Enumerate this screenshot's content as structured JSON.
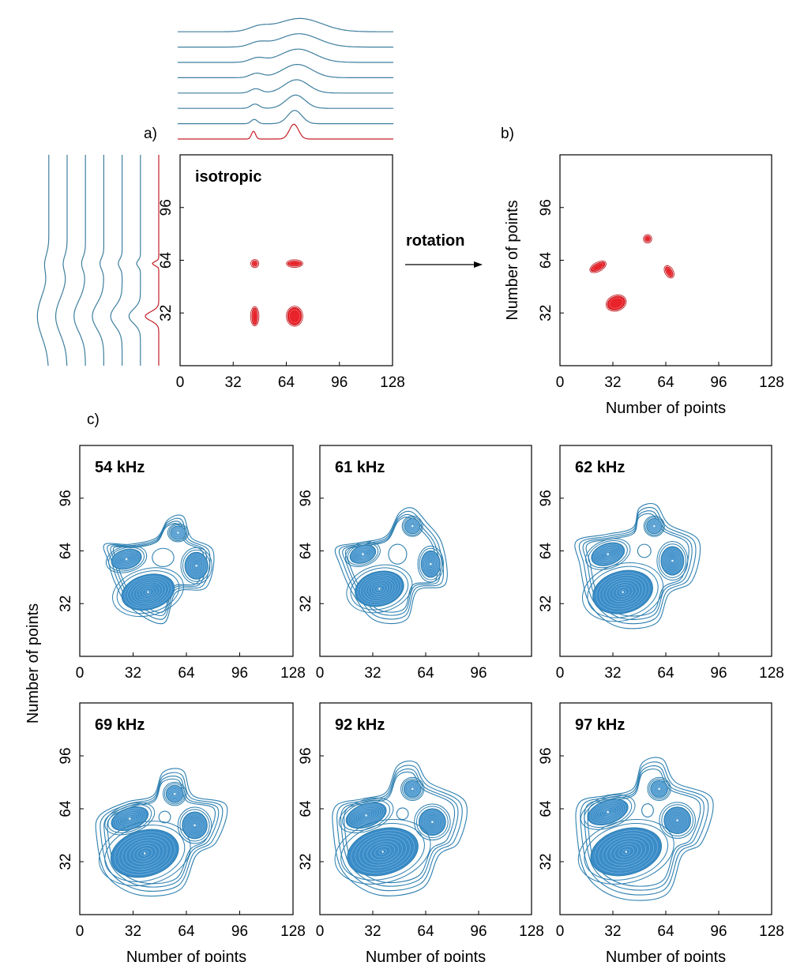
{
  "colors": {
    "red": "#e8232a",
    "blue": "#3a8cc8",
    "line_blue": "#3f7f9e",
    "frame": "#000000",
    "contour_edge": "#2d7fb0"
  },
  "panel_labels": {
    "a": "a)",
    "b": "b)",
    "c": "c)"
  },
  "arrow_label": "rotation",
  "chart_data": [
    {
      "id": "a",
      "type": "contour",
      "annotation": "isotropic",
      "xlabel": "",
      "ylabel": "",
      "xlim": [
        0,
        128
      ],
      "ylim": [
        0,
        128
      ],
      "xticks": [
        "0",
        "32",
        "64",
        "96",
        "128"
      ],
      "yticks": [
        "32",
        "64",
        "96"
      ],
      "color": "#e8232a",
      "peaks": [
        {
          "x": 45,
          "y": 62,
          "sx": 1.5,
          "sy": 1.5,
          "rot": 0
        },
        {
          "x": 69,
          "y": 62,
          "sx": 3.8,
          "sy": 1.4,
          "rot": 0
        },
        {
          "x": 45,
          "y": 30,
          "sx": 1.6,
          "sy": 4.6,
          "rot": 0
        },
        {
          "x": 69,
          "y": 30,
          "sx": 3.8,
          "sy": 4.8,
          "rot": 0
        }
      ],
      "projection_top": {
        "peaks_x": [
          45,
          69
        ],
        "widths": [
          1.2,
          3.0
        ],
        "heights": [
          0.45,
          0.85
        ]
      },
      "projection_left": {
        "peaks_y": [
          62,
          30
        ],
        "widths": [
          1.2,
          3.0
        ],
        "heights": [
          0.4,
          0.85
        ]
      }
    },
    {
      "id": "b",
      "type": "contour",
      "annotation": "",
      "xlabel": "Number of points",
      "ylabel": "Number of points",
      "xlim": [
        0,
        128
      ],
      "ylim": [
        0,
        128
      ],
      "xticks": [
        "0",
        "32",
        "64",
        "96",
        "128"
      ],
      "yticks": [
        "32",
        "64",
        "96"
      ],
      "color": "#e8232a",
      "peaks": [
        {
          "x": 53,
          "y": 77,
          "sx": 1.6,
          "sy": 1.6,
          "rot": 0
        },
        {
          "x": 23,
          "y": 60,
          "sx": 4.2,
          "sy": 1.8,
          "rot": 28
        },
        {
          "x": 66,
          "y": 57,
          "sx": 3.0,
          "sy": 1.6,
          "rot": -60
        },
        {
          "x": 34,
          "y": 38,
          "sx": 5.0,
          "sy": 3.6,
          "rot": 20
        }
      ]
    },
    {
      "id": "c1",
      "type": "contour",
      "annotation": "54 kHz",
      "xlabel": "",
      "ylabel": "",
      "xlim": [
        0,
        128
      ],
      "ylim": [
        0,
        128
      ],
      "xticks": [
        "0",
        "32",
        "64",
        "96",
        "128"
      ],
      "yticks": [
        "32",
        "64",
        "96"
      ],
      "color": "#3a8cc8",
      "peaks": [
        {
          "x": 59,
          "y": 75,
          "a": 4,
          "b": 3.5,
          "rot": 0
        },
        {
          "x": 28,
          "y": 59,
          "a": 8,
          "b": 5,
          "rot": 15
        },
        {
          "x": 70,
          "y": 55,
          "a": 6,
          "b": 7,
          "rot": 0
        },
        {
          "x": 41,
          "y": 39,
          "a": 14,
          "b": 9,
          "rot": 15
        }
      ],
      "envelope": [
        [
          15,
          68
        ],
        [
          30,
          68
        ],
        [
          46,
          72
        ],
        [
          53,
          83
        ],
        [
          62,
          85
        ],
        [
          67,
          72
        ],
        [
          80,
          64
        ],
        [
          76,
          42
        ],
        [
          58,
          39
        ],
        [
          50,
          20
        ],
        [
          30,
          30
        ],
        [
          21,
          45
        ],
        [
          17,
          58
        ]
      ],
      "hole": {
        "x": 50,
        "y": 60,
        "a": 6.5,
        "b": 5.5
      }
    },
    {
      "id": "c2",
      "type": "contour",
      "annotation": "61 kHz",
      "xlabel": "",
      "ylabel": "",
      "xlim": [
        0,
        128
      ],
      "ylim": [
        0,
        128
      ],
      "xticks": [
        "0",
        "32",
        "64",
        "96"
      ],
      "yticks": [
        "32",
        "64",
        "96"
      ],
      "color": "#3a8cc8",
      "peaks": [
        {
          "x": 56,
          "y": 79,
          "a": 4,
          "b": 4,
          "rot": 0
        },
        {
          "x": 26,
          "y": 62,
          "a": 7,
          "b": 4.5,
          "rot": 20
        },
        {
          "x": 67,
          "y": 56,
          "a": 5,
          "b": 7,
          "rot": 0
        },
        {
          "x": 36,
          "y": 41,
          "a": 13,
          "b": 9,
          "rot": 15
        }
      ],
      "envelope": [
        [
          10,
          66
        ],
        [
          24,
          69
        ],
        [
          40,
          73
        ],
        [
          48,
          87
        ],
        [
          56,
          90
        ],
        [
          64,
          82
        ],
        [
          74,
          68
        ],
        [
          76,
          44
        ],
        [
          59,
          40
        ],
        [
          52,
          22
        ],
        [
          33,
          22
        ],
        [
          20,
          38
        ],
        [
          12,
          56
        ]
      ],
      "hole": {
        "x": 47,
        "y": 62,
        "a": 5.5,
        "b": 6
      }
    },
    {
      "id": "c3",
      "type": "contour",
      "annotation": "62 kHz",
      "xlabel": "",
      "ylabel": "",
      "xlim": [
        0,
        128
      ],
      "ylim": [
        0,
        128
      ],
      "xticks": [
        "0",
        "32",
        "64",
        "96",
        "128"
      ],
      "yticks": [
        "32",
        "64",
        "96"
      ],
      "color": "#3a8cc8",
      "peaks": [
        {
          "x": 57,
          "y": 79,
          "a": 4,
          "b": 4,
          "rot": 0
        },
        {
          "x": 29,
          "y": 62,
          "a": 9,
          "b": 5.5,
          "rot": 20
        },
        {
          "x": 68,
          "y": 58,
          "a": 6,
          "b": 7.5,
          "rot": 0
        },
        {
          "x": 38,
          "y": 39,
          "a": 16,
          "b": 11,
          "rot": 15
        }
      ],
      "envelope": [
        [
          10,
          70
        ],
        [
          28,
          74
        ],
        [
          44,
          78
        ],
        [
          48,
          90
        ],
        [
          58,
          92
        ],
        [
          66,
          80
        ],
        [
          84,
          70
        ],
        [
          80,
          46
        ],
        [
          66,
          38
        ],
        [
          58,
          20
        ],
        [
          35,
          18
        ],
        [
          18,
          32
        ],
        [
          12,
          56
        ]
      ],
      "hole": {
        "x": 51,
        "y": 64,
        "a": 4,
        "b": 4
      }
    },
    {
      "id": "c4",
      "type": "contour",
      "annotation": "69 kHz",
      "xlabel": "Number of points",
      "ylabel": "",
      "xlim": [
        0,
        128
      ],
      "ylim": [
        0,
        128
      ],
      "xticks": [
        "0",
        "32",
        "64",
        "96",
        "128"
      ],
      "yticks": [
        "32",
        "64",
        "96"
      ],
      "color": "#3a8cc8",
      "peaks": [
        {
          "x": 57,
          "y": 73,
          "a": 4.5,
          "b": 4.5,
          "rot": 0
        },
        {
          "x": 30,
          "y": 58,
          "a": 10,
          "b": 5.5,
          "rot": 20
        },
        {
          "x": 69,
          "y": 54,
          "a": 6.5,
          "b": 7,
          "rot": 0
        },
        {
          "x": 39,
          "y": 37,
          "a": 18,
          "b": 12,
          "rot": 15
        }
      ],
      "envelope": [
        [
          12,
          60
        ],
        [
          28,
          68
        ],
        [
          44,
          72
        ],
        [
          50,
          86
        ],
        [
          62,
          87
        ],
        [
          68,
          72
        ],
        [
          88,
          66
        ],
        [
          82,
          44
        ],
        [
          70,
          36
        ],
        [
          60,
          15
        ],
        [
          35,
          12
        ],
        [
          16,
          24
        ],
        [
          10,
          48
        ]
      ],
      "hole": {
        "x": 51,
        "y": 59,
        "a": 3.5,
        "b": 3.5
      }
    },
    {
      "id": "c5",
      "type": "contour",
      "annotation": "92 kHz",
      "xlabel": "Number of points",
      "ylabel": "",
      "xlim": [
        0,
        128
      ],
      "ylim": [
        0,
        128
      ],
      "xticks": [
        "0",
        "32",
        "64",
        "96",
        "128"
      ],
      "yticks": [
        "32",
        "64",
        "96"
      ],
      "color": "#3a8cc8",
      "peaks": [
        {
          "x": 56,
          "y": 76,
          "a": 4.5,
          "b": 4.5,
          "rot": 0
        },
        {
          "x": 28,
          "y": 60,
          "a": 11,
          "b": 6,
          "rot": 20
        },
        {
          "x": 68,
          "y": 56,
          "a": 7,
          "b": 7,
          "rot": 0
        },
        {
          "x": 38,
          "y": 38,
          "a": 19,
          "b": 12,
          "rot": 15
        }
      ],
      "envelope": [
        [
          10,
          66
        ],
        [
          26,
          70
        ],
        [
          40,
          74
        ],
        [
          47,
          90
        ],
        [
          58,
          92
        ],
        [
          66,
          80
        ],
        [
          88,
          68
        ],
        [
          84,
          44
        ],
        [
          72,
          36
        ],
        [
          62,
          16
        ],
        [
          35,
          12
        ],
        [
          14,
          26
        ],
        [
          8,
          52
        ]
      ],
      "hole": {
        "x": 50,
        "y": 61,
        "a": 3.5,
        "b": 3.5
      }
    },
    {
      "id": "c6",
      "type": "contour",
      "annotation": "97 kHz",
      "xlabel": "Number of points",
      "ylabel": "",
      "xlim": [
        0,
        128
      ],
      "ylim": [
        0,
        128
      ],
      "xticks": [
        "0",
        "32",
        "64",
        "96",
        "128"
      ],
      "yticks": [
        "32",
        "64",
        "96"
      ],
      "color": "#3a8cc8",
      "peaks": [
        {
          "x": 60,
          "y": 76,
          "a": 4.5,
          "b": 4.5,
          "rot": 0
        },
        {
          "x": 29,
          "y": 62,
          "a": 11,
          "b": 6,
          "rot": 20
        },
        {
          "x": 71,
          "y": 57,
          "a": 7,
          "b": 7,
          "rot": 0
        },
        {
          "x": 40,
          "y": 38,
          "a": 19,
          "b": 12,
          "rot": 15
        }
      ],
      "envelope": [
        [
          12,
          68
        ],
        [
          28,
          72
        ],
        [
          44,
          76
        ],
        [
          50,
          92
        ],
        [
          62,
          94
        ],
        [
          70,
          80
        ],
        [
          92,
          70
        ],
        [
          86,
          44
        ],
        [
          74,
          36
        ],
        [
          64,
          12
        ],
        [
          36,
          10
        ],
        [
          16,
          24
        ],
        [
          10,
          52
        ]
      ],
      "hole": {
        "x": 53,
        "y": 63,
        "a": 3.5,
        "b": 4
      }
    }
  ],
  "shared_ylabel": "Number of points"
}
